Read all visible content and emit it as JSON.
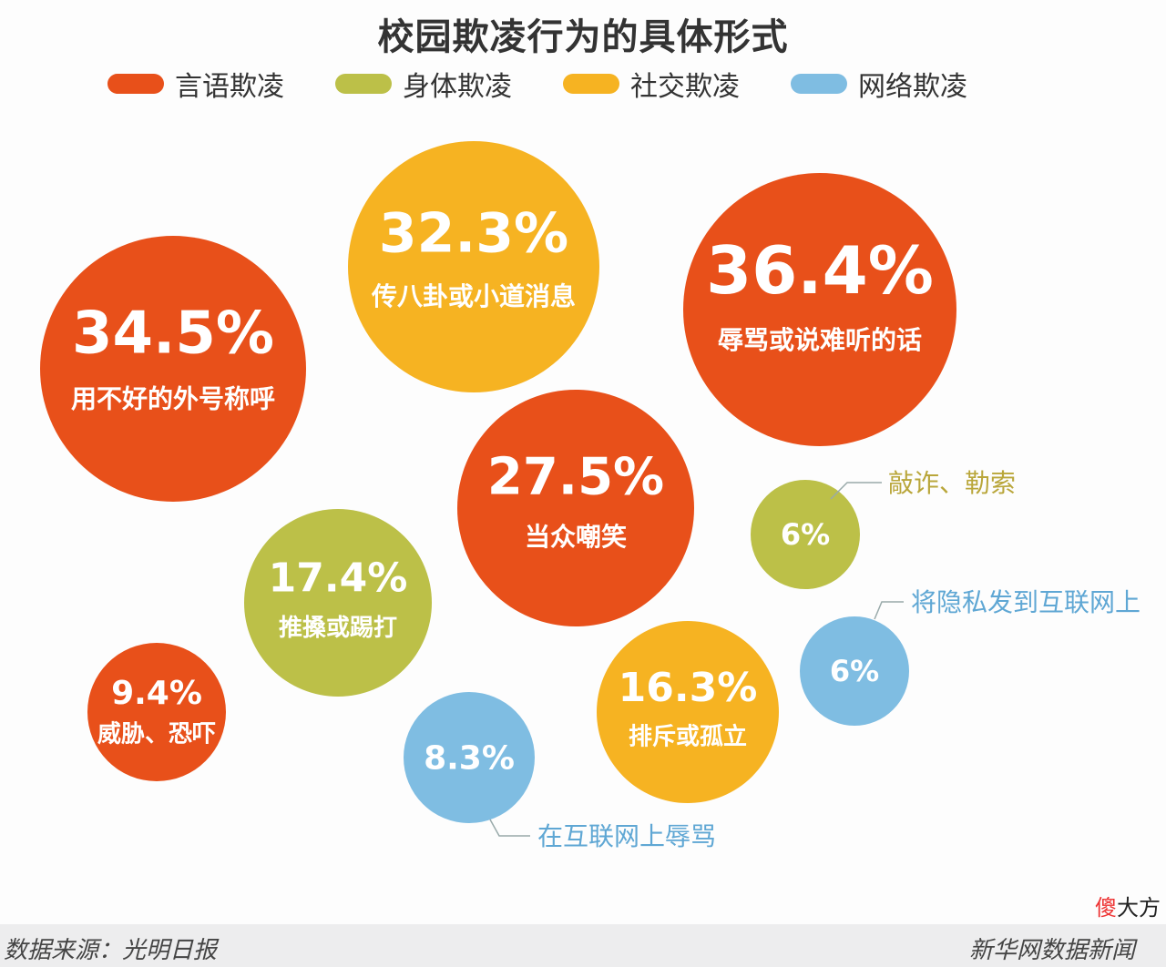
{
  "colors": {
    "verbal": "#e8501a",
    "physical": "#bcc048",
    "social": "#f6b322",
    "cyber": "#7fbde2"
  },
  "chart_data": {
    "type": "bubble",
    "title": "校园欺凌行为的具体形式",
    "legend": {
      "placement": "top",
      "entries": [
        {
          "key": "verbal",
          "label": "言语欺凌"
        },
        {
          "key": "physical",
          "label": "身体欺凌"
        },
        {
          "key": "social",
          "label": "社交欺凌"
        },
        {
          "key": "cyber",
          "label": "网络欺凌"
        }
      ]
    },
    "points": [
      {
        "label": "用不好的外号称呼",
        "value": "34.5%",
        "category": "verbal"
      },
      {
        "label": "传八卦或小道消息",
        "value": "32.3%",
        "category": "social"
      },
      {
        "label": "辱骂或说难听的话",
        "value": "36.4%",
        "category": "verbal"
      },
      {
        "label": "当众嘲笑",
        "value": "27.5%",
        "category": "verbal"
      },
      {
        "label": "敲诈、勒索",
        "value": "6%",
        "category": "physical"
      },
      {
        "label": "推搡或踢打",
        "value": "17.4%",
        "category": "physical"
      },
      {
        "label": "威胁、恐吓",
        "value": "9.4%",
        "category": "verbal"
      },
      {
        "label": "在互联网上辱骂",
        "value": "8.3%",
        "category": "cyber"
      },
      {
        "label": "排斥或孤立",
        "value": "16.3%",
        "category": "social"
      },
      {
        "label": "将隐私发到互联网上",
        "value": "6%",
        "category": "cyber"
      }
    ]
  },
  "footer": {
    "source": "数据来源：光明日报",
    "brand": "新华网数据新闻",
    "watermark": [
      "傻",
      "大方"
    ]
  }
}
